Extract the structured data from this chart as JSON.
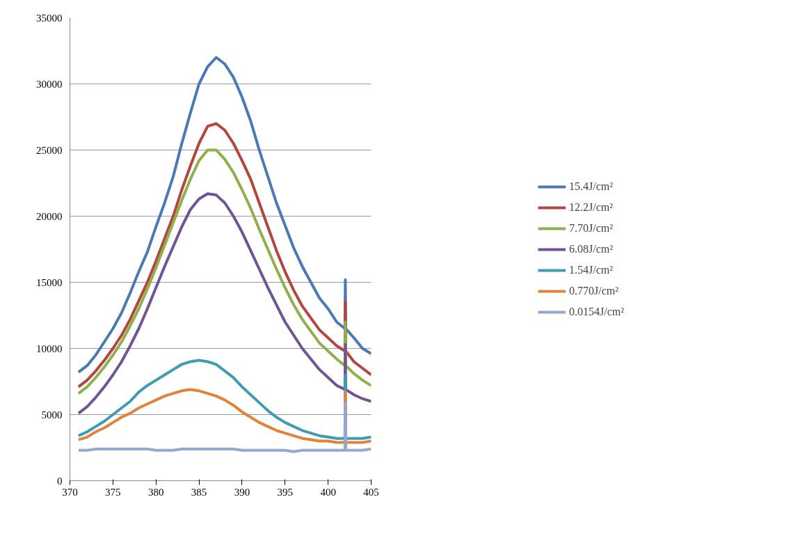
{
  "chart_data": {
    "type": "line",
    "x": [
      371,
      372,
      373,
      374,
      375,
      376,
      377,
      378,
      379,
      380,
      381,
      382,
      383,
      384,
      385,
      386,
      387,
      388,
      389,
      390,
      391,
      392,
      393,
      394,
      395,
      396,
      397,
      398,
      399,
      400,
      401,
      401.95,
      402,
      402.05,
      403,
      404,
      405
    ],
    "series": [
      {
        "name": "15.4J/cm²",
        "color": "#4a7ab5",
        "values": [
          8200,
          8700,
          9500,
          10500,
          11500,
          12700,
          14200,
          15800,
          17300,
          19200,
          21000,
          23000,
          25500,
          27800,
          30000,
          31300,
          32000,
          31500,
          30500,
          29000,
          27200,
          25000,
          23000,
          21000,
          19300,
          17600,
          16200,
          15000,
          13800,
          13000,
          12000,
          11500,
          15200,
          11500,
          10800,
          10000,
          9600
        ]
      },
      {
        "name": "12.2J/cm²",
        "color": "#b5463f",
        "values": [
          7100,
          7600,
          8300,
          9100,
          10000,
          11000,
          12200,
          13600,
          15000,
          16600,
          18300,
          20000,
          22000,
          23800,
          25500,
          26800,
          27000,
          26500,
          25500,
          24200,
          22800,
          21000,
          19200,
          17400,
          15800,
          14400,
          13200,
          12300,
          11400,
          10800,
          10200,
          9800,
          13500,
          9800,
          9000,
          8500,
          8000
        ]
      },
      {
        "name": "7.70J/cm²",
        "color": "#8fb04a",
        "values": [
          6600,
          7100,
          7800,
          8600,
          9500,
          10500,
          11700,
          13000,
          14500,
          16100,
          17800,
          19500,
          21200,
          22800,
          24200,
          25000,
          25000,
          24300,
          23300,
          22000,
          20600,
          19000,
          17500,
          16000,
          14600,
          13300,
          12200,
          11300,
          10400,
          9800,
          9200,
          8700,
          12000,
          8700,
          8100,
          7600,
          7200
        ]
      },
      {
        "name": "6.08J/cm²",
        "color": "#6f5596",
        "values": [
          5100,
          5600,
          6300,
          7100,
          8000,
          9000,
          10200,
          11500,
          13000,
          14600,
          16200,
          17700,
          19200,
          20500,
          21300,
          21700,
          21600,
          21000,
          20000,
          18800,
          17400,
          16000,
          14600,
          13300,
          12000,
          11000,
          10000,
          9200,
          8400,
          7800,
          7200,
          6900,
          10300,
          6900,
          6500,
          6200,
          6000
        ]
      },
      {
        "name": "1.54J/cm²",
        "color": "#3e9db3",
        "values": [
          3400,
          3700,
          4100,
          4500,
          5000,
          5500,
          6000,
          6700,
          7200,
          7600,
          8000,
          8400,
          8800,
          9000,
          9100,
          9000,
          8800,
          8300,
          7800,
          7100,
          6500,
          5900,
          5300,
          4800,
          4400,
          4100,
          3800,
          3600,
          3400,
          3300,
          3200,
          3200,
          8000,
          3200,
          3200,
          3200,
          3300
        ]
      },
      {
        "name": "0.770J/cm²",
        "color": "#e3833a",
        "values": [
          3100,
          3300,
          3700,
          4000,
          4400,
          4800,
          5100,
          5500,
          5800,
          6100,
          6400,
          6600,
          6800,
          6900,
          6800,
          6600,
          6400,
          6100,
          5700,
          5200,
          4800,
          4400,
          4100,
          3800,
          3600,
          3400,
          3200,
          3100,
          3000,
          3000,
          2900,
          2900,
          6700,
          2900,
          2900,
          2900,
          3000
        ]
      },
      {
        "name": "0.0154J/cm²",
        "color": "#92a9d0",
        "values": [
          2300,
          2300,
          2400,
          2400,
          2400,
          2400,
          2400,
          2400,
          2400,
          2300,
          2300,
          2300,
          2400,
          2400,
          2400,
          2400,
          2400,
          2400,
          2400,
          2300,
          2300,
          2300,
          2300,
          2300,
          2300,
          2200,
          2300,
          2300,
          2300,
          2300,
          2300,
          2300,
          5900,
          2300,
          2300,
          2300,
          2400
        ]
      }
    ],
    "xlim": [
      370,
      405
    ],
    "xticks": [
      370,
      375,
      380,
      385,
      390,
      395,
      400,
      405
    ],
    "ylim": [
      0,
      35000
    ],
    "yticks": [
      0,
      5000,
      10000,
      15000,
      20000,
      25000,
      30000,
      35000
    ],
    "grid": "y",
    "legend": "right",
    "line_style": "solid",
    "marker": "none"
  }
}
